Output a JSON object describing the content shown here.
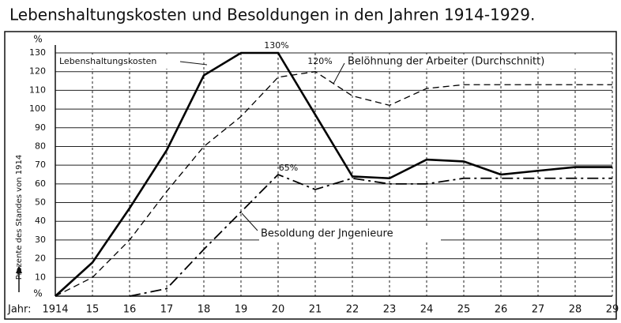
{
  "chart_data": {
    "type": "line",
    "title": "Lebenshaltungskosten und Besoldungen in den Jahren 1914-1929.",
    "ylabel": "Prozente des Standes von 1914",
    "y_unit": "%",
    "xlabel": "Jahr:",
    "x": [
      1914,
      1915,
      1916,
      1917,
      1918,
      1919,
      1920,
      1921,
      1922,
      1923,
      1924,
      1925,
      1926,
      1927,
      1928,
      1929
    ],
    "xlim": [
      1914,
      1929
    ],
    "xticks": [
      1914,
      {
        "value": 1915,
        "label": "15"
      },
      {
        "value": 1916,
        "label": "16"
      },
      {
        "value": 1917,
        "label": "17"
      },
      {
        "value": 1918,
        "label": "18"
      },
      {
        "value": 1919,
        "label": "19"
      },
      {
        "value": 1920,
        "label": "20"
      },
      {
        "value": 1921,
        "label": "21"
      },
      {
        "value": 1922,
        "label": "22"
      },
      {
        "value": 1923,
        "label": "23"
      },
      {
        "value": 1924,
        "label": "24"
      },
      {
        "value": 1925,
        "label": "25"
      },
      {
        "value": 1926,
        "label": "26"
      },
      {
        "value": 1927,
        "label": "27"
      },
      {
        "value": 1928,
        "label": "28"
      },
      {
        "value": 1929,
        "label": "29"
      }
    ],
    "ylim": [
      0,
      130
    ],
    "yticks": [
      10,
      20,
      30,
      40,
      50,
      60,
      70,
      80,
      90,
      100,
      110,
      120,
      130
    ],
    "grid": true,
    "series": [
      {
        "name": "Lebenshaltungskosten",
        "color": "#000000",
        "style": "solid",
        "values": [
          0,
          18,
          47,
          78,
          118,
          130,
          130,
          97,
          64,
          63,
          73,
          72,
          65,
          67,
          69,
          69
        ]
      },
      {
        "name": "Belöhnung der Arbeiter (Durchschnitt)",
        "color": "#000000",
        "style": "dashed",
        "values": [
          0,
          10,
          30,
          56,
          80,
          96,
          117,
          120,
          107,
          102,
          111,
          113,
          113,
          113,
          113,
          113
        ]
      },
      {
        "name": "Besoldung der Jngenieure",
        "color": "#000000",
        "style": "dashdot",
        "values": [
          null,
          null,
          0,
          4,
          25,
          45,
          65,
          57,
          63,
          60,
          60,
          63,
          63,
          63,
          63,
          63
        ]
      }
    ],
    "annotations": [
      "130%",
      "120%",
      "65%"
    ]
  }
}
